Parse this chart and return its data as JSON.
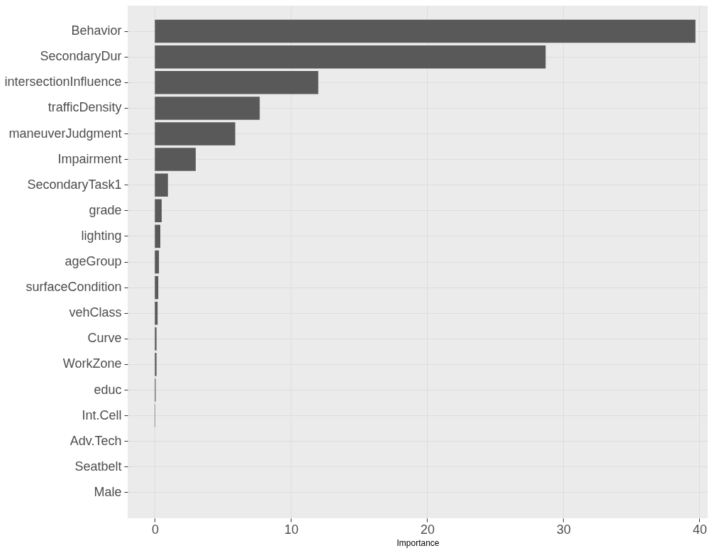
{
  "chart_data": {
    "type": "bar",
    "orientation": "horizontal",
    "xlabel": "Importance",
    "categories": [
      "Behavior",
      "SecondaryDur",
      "intersectionInfluence",
      "trafficDensity",
      "maneuverJudgment",
      "Impairment",
      "SecondaryTask1",
      "grade",
      "lighting",
      "ageGroup",
      "surfaceCondition",
      "vehClass",
      "Curve",
      "WorkZone",
      "educ",
      "Int.Cell",
      "Adv.Tech",
      "Seatbelt",
      "Male"
    ],
    "values": [
      39.7,
      28.7,
      12.0,
      7.7,
      5.9,
      3.0,
      0.96,
      0.5,
      0.4,
      0.3,
      0.25,
      0.2,
      0.12,
      0.12,
      0.06,
      0.03,
      0,
      0,
      0
    ],
    "color": "#595959",
    "xlim": [
      -2,
      40.6
    ],
    "xticks": [
      0,
      10,
      20,
      30,
      40
    ],
    "grid": true
  }
}
